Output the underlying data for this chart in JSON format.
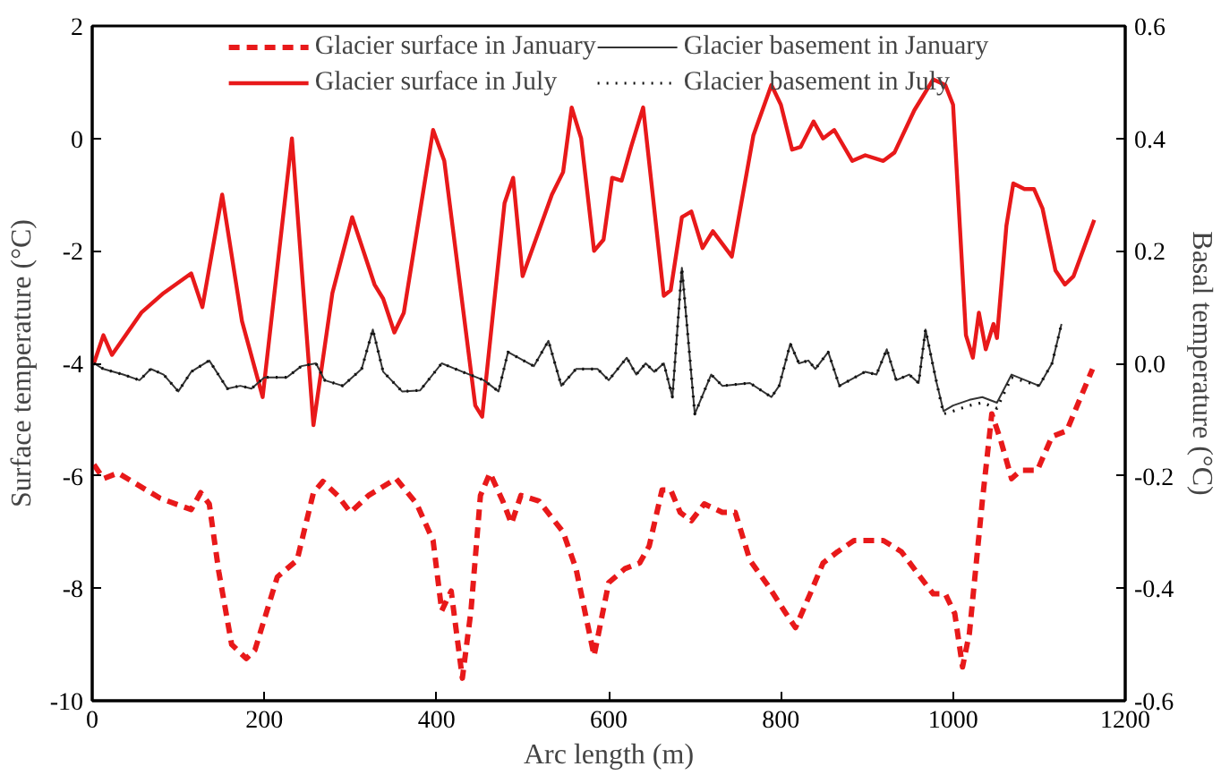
{
  "chart_data": {
    "type": "line",
    "xlabel": "Arc length (m)",
    "ylabel": "Surface temperature (°C)",
    "y2label": "Basal temperature (°C)",
    "xlim": [
      0,
      1200
    ],
    "xticks": [
      0,
      200,
      400,
      600,
      800,
      1000,
      1200
    ],
    "ylim": [
      -10,
      2
    ],
    "yticks": [
      -10,
      -8,
      -6,
      -4,
      -2,
      0,
      2
    ],
    "y2lim": [
      -0.6,
      0.6
    ],
    "y2ticks": [
      {
        "value": -0.6,
        "label": "-0.6"
      },
      {
        "value": -0.4,
        "label": "-0.4"
      },
      {
        "value": -0.2,
        "label": "-0.2"
      },
      {
        "value": 0,
        "label": "0.0"
      },
      {
        "value": 0.2,
        "label": "0.2"
      },
      {
        "value": 0.4,
        "label": "0.4"
      },
      {
        "value": 0.6,
        "label": "0.6"
      }
    ],
    "grid": false,
    "legend": "top",
    "marker": "none",
    "series": [
      {
        "name": "Glacier surface in January",
        "color": "#e8191a",
        "line_style": "dashed",
        "axis": "y",
        "x": [
          2,
          13,
          30,
          79,
          115,
          126,
          136,
          147,
          162,
          179,
          189,
          215,
          238,
          257,
          268,
          285,
          300,
          321,
          353,
          377,
          396,
          406,
          417,
          430,
          440,
          451,
          462,
          477,
          487,
          498,
          519,
          547,
          562,
          583,
          600,
          619,
          636,
          647,
          662,
          672,
          683,
          696,
          711,
          732,
          747,
          764,
          785,
          806,
          817,
          834,
          849,
          866,
          885,
          902,
          919,
          940,
          962,
          977,
          991,
          1002,
          1011,
          1019,
          1034,
          1045,
          1055,
          1068,
          1079,
          1098,
          1115,
          1132,
          1162
        ],
        "values": [
          -5.8,
          -6.05,
          -5.95,
          -6.4,
          -6.6,
          -6.3,
          -6.5,
          -7.7,
          -9.0,
          -9.25,
          -9.1,
          -7.8,
          -7.5,
          -6.3,
          -6.1,
          -6.35,
          -6.65,
          -6.35,
          -6.05,
          -6.5,
          -7.15,
          -8.4,
          -8.05,
          -9.6,
          -8.4,
          -6.35,
          -5.95,
          -6.45,
          -6.85,
          -6.35,
          -6.45,
          -7.0,
          -7.65,
          -9.2,
          -7.9,
          -7.65,
          -7.55,
          -7.25,
          -6.25,
          -6.25,
          -6.65,
          -6.8,
          -6.5,
          -6.65,
          -6.65,
          -7.5,
          -7.95,
          -8.45,
          -8.7,
          -8.1,
          -7.55,
          -7.35,
          -7.15,
          -7.15,
          -7.15,
          -7.35,
          -7.8,
          -8.1,
          -8.1,
          -8.45,
          -9.4,
          -8.8,
          -6.45,
          -4.9,
          -5.35,
          -6.05,
          -5.9,
          -5.9,
          -5.3,
          -5.2,
          -4.1
        ]
      },
      {
        "name": "Glacier surface in July",
        "color": "#e8191a",
        "line_style": "solid",
        "axis": "y",
        "x": [
          2,
          13,
          23,
          57,
          83,
          115,
          128,
          151,
          174,
          198,
          232,
          257,
          279,
          302,
          328,
          338,
          351,
          362,
          396,
          409,
          445,
          453,
          479,
          489,
          500,
          534,
          547,
          557,
          568,
          583,
          594,
          604,
          615,
          626,
          640,
          664,
          672,
          685,
          696,
          709,
          721,
          743,
          768,
          789,
          800,
          813,
          823,
          838,
          849,
          862,
          883,
          898,
          919,
          932,
          955,
          977,
          991,
          1000,
          1015,
          1023,
          1030,
          1038,
          1047,
          1051,
          1062,
          1070,
          1083,
          1094,
          1104,
          1119,
          1130,
          1140,
          1164
        ],
        "values": [
          -4.0,
          -3.5,
          -3.85,
          -3.1,
          -2.75,
          -2.4,
          -3.0,
          -1.0,
          -3.25,
          -4.6,
          0.0,
          -5.1,
          -2.75,
          -1.4,
          -2.6,
          -2.85,
          -3.45,
          -3.1,
          0.15,
          -0.4,
          -4.75,
          -4.95,
          -1.15,
          -0.7,
          -2.45,
          -1.0,
          -0.6,
          0.55,
          0.0,
          -2.0,
          -1.8,
          -0.7,
          -0.75,
          -0.15,
          0.55,
          -2.8,
          -2.7,
          -1.4,
          -1.3,
          -1.95,
          -1.65,
          -2.1,
          0.05,
          0.95,
          0.6,
          -0.2,
          -0.15,
          0.3,
          0.0,
          0.15,
          -0.4,
          -0.3,
          -0.4,
          -0.25,
          0.5,
          1.05,
          0.95,
          0.6,
          -3.5,
          -3.9,
          -3.1,
          -3.75,
          -3.3,
          -3.55,
          -1.55,
          -0.8,
          -0.9,
          -0.9,
          -1.25,
          -2.35,
          -2.6,
          -2.45,
          -1.45
        ]
      },
      {
        "name": "Glacier basement in January",
        "color": "#333333",
        "line_style": "solid",
        "axis": "y2",
        "x": [
          2,
          13,
          36,
          55,
          68,
          83,
          100,
          115,
          136,
          157,
          172,
          185,
          200,
          226,
          243,
          260,
          270,
          291,
          313,
          326,
          338,
          360,
          381,
          406,
          430,
          455,
          472,
          483,
          513,
          530,
          545,
          562,
          587,
          600,
          621,
          632,
          643,
          653,
          664,
          674,
          685,
          700,
          719,
          732,
          764,
          789,
          798,
          811,
          821,
          832,
          840,
          855,
          868,
          898,
          911,
          923,
          934,
          949,
          960,
          968,
          981,
          989,
          1000,
          1019,
          1034,
          1051,
          1068,
          1100,
          1115,
          1126
        ],
        "values": [
          0.0,
          -0.01,
          -0.02,
          -0.03,
          -0.01,
          -0.02,
          -0.05,
          -0.015,
          0.005,
          -0.045,
          -0.04,
          -0.045,
          -0.025,
          -0.025,
          -0.005,
          0.0,
          -0.03,
          -0.04,
          -0.01,
          0.06,
          -0.015,
          -0.05,
          -0.048,
          0.0,
          -0.015,
          -0.03,
          -0.05,
          0.02,
          -0.005,
          0.04,
          -0.04,
          -0.01,
          -0.01,
          -0.03,
          0.01,
          -0.02,
          0.0,
          -0.015,
          0.0,
          -0.06,
          0.17,
          -0.09,
          -0.02,
          -0.04,
          -0.035,
          -0.06,
          -0.04,
          0.035,
          0.0,
          0.005,
          -0.01,
          0.02,
          -0.04,
          -0.015,
          -0.02,
          0.025,
          -0.03,
          -0.02,
          -0.035,
          0.06,
          -0.035,
          -0.085,
          -0.075,
          -0.065,
          -0.06,
          -0.07,
          -0.02,
          -0.04,
          0.0,
          0.07
        ]
      },
      {
        "name": "Glacier basement in July",
        "color": "#111111",
        "line_style": "dotted",
        "axis": "y2",
        "x": [
          2,
          13,
          36,
          55,
          68,
          83,
          100,
          115,
          136,
          157,
          172,
          185,
          200,
          226,
          243,
          260,
          270,
          291,
          313,
          326,
          338,
          360,
          381,
          406,
          430,
          455,
          472,
          483,
          513,
          530,
          545,
          562,
          587,
          600,
          621,
          632,
          643,
          653,
          664,
          674,
          685,
          700,
          719,
          732,
          764,
          789,
          798,
          811,
          821,
          832,
          840,
          855,
          868,
          898,
          911,
          923,
          934,
          949,
          960,
          968,
          981,
          989,
          1000,
          1019,
          1034,
          1051,
          1068,
          1100,
          1115,
          1126
        ],
        "values": [
          0.0,
          -0.01,
          -0.02,
          -0.03,
          -0.01,
          -0.02,
          -0.05,
          -0.015,
          0.005,
          -0.045,
          -0.04,
          -0.045,
          -0.025,
          -0.025,
          -0.005,
          0.0,
          -0.03,
          -0.04,
          -0.01,
          0.06,
          -0.015,
          -0.05,
          -0.048,
          0.0,
          -0.015,
          -0.03,
          -0.05,
          0.02,
          -0.005,
          0.04,
          -0.04,
          -0.01,
          -0.01,
          -0.03,
          0.01,
          -0.02,
          0.0,
          -0.015,
          0.0,
          -0.06,
          0.17,
          -0.09,
          -0.02,
          -0.04,
          -0.035,
          -0.06,
          -0.04,
          0.035,
          0.0,
          0.005,
          -0.01,
          0.02,
          -0.04,
          -0.015,
          -0.02,
          0.025,
          -0.03,
          -0.02,
          -0.035,
          0.06,
          -0.035,
          -0.09,
          -0.085,
          -0.075,
          -0.07,
          -0.08,
          -0.025,
          -0.04,
          0.0,
          0.07
        ]
      }
    ]
  }
}
